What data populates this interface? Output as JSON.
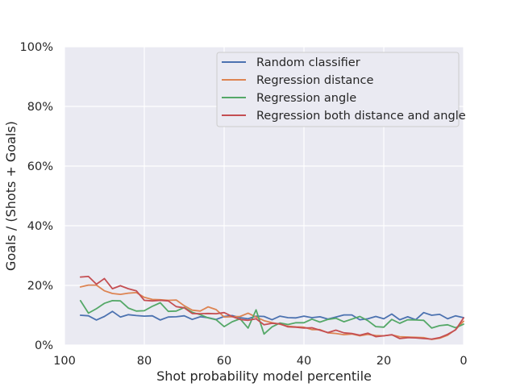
{
  "chart_data": {
    "type": "line",
    "title": "",
    "xlabel": "Shot probability model percentile",
    "ylabel": "Goals / (Shots + Goals)",
    "xlim": [
      100,
      0
    ],
    "ylim": [
      0,
      1
    ],
    "x_ticks": [
      100,
      80,
      60,
      40,
      20,
      0
    ],
    "x_tick_labels": [
      "100",
      "80",
      "60",
      "40",
      "20",
      "0"
    ],
    "y_ticks": [
      0,
      0.2,
      0.4,
      0.6,
      0.8,
      1.0
    ],
    "y_tick_labels": [
      "0%",
      "20%",
      "40%",
      "60%",
      "80%",
      "100%"
    ],
    "grid": true,
    "legend_position": "top-right",
    "x": [
      96,
      94,
      92,
      90,
      88,
      86,
      84,
      82,
      80,
      78,
      76,
      74,
      72,
      70,
      68,
      66,
      64,
      62,
      60,
      58,
      56,
      54,
      52,
      50,
      48,
      46,
      44,
      42,
      40,
      38,
      36,
      34,
      32,
      30,
      28,
      26,
      24,
      22,
      20,
      18,
      16,
      14,
      12,
      10,
      8,
      6,
      4,
      2,
      0
    ],
    "series": [
      {
        "name": "Random classifier",
        "color": "#4c72b0",
        "values": [
          0.1,
          0.098,
          0.084,
          0.096,
          0.113,
          0.094,
          0.102,
          0.099,
          0.097,
          0.098,
          0.084,
          0.094,
          0.095,
          0.098,
          0.086,
          0.095,
          0.092,
          0.086,
          0.096,
          0.099,
          0.092,
          0.088,
          0.097,
          0.096,
          0.085,
          0.097,
          0.092,
          0.091,
          0.097,
          0.092,
          0.095,
          0.087,
          0.094,
          0.101,
          0.101,
          0.085,
          0.088,
          0.096,
          0.088,
          0.104,
          0.085,
          0.095,
          0.085,
          0.109,
          0.1,
          0.103,
          0.088,
          0.098,
          0.092
        ]
      },
      {
        "name": "Regression distance",
        "color": "#dd8452",
        "values": [
          0.195,
          0.201,
          0.201,
          0.182,
          0.173,
          0.17,
          0.174,
          0.176,
          0.16,
          0.153,
          0.152,
          0.15,
          0.151,
          0.132,
          0.117,
          0.114,
          0.128,
          0.119,
          0.094,
          0.095,
          0.096,
          0.107,
          0.094,
          0.082,
          0.075,
          0.07,
          0.063,
          0.061,
          0.06,
          0.052,
          0.052,
          0.041,
          0.039,
          0.035,
          0.037,
          0.031,
          0.036,
          0.032,
          0.031,
          0.034,
          0.028,
          0.027,
          0.026,
          0.025,
          0.019,
          0.023,
          0.033,
          0.052,
          0.08
        ]
      },
      {
        "name": "Regression angle",
        "color": "#55a868",
        "values": [
          0.149,
          0.107,
          0.122,
          0.14,
          0.149,
          0.148,
          0.124,
          0.114,
          0.115,
          0.13,
          0.142,
          0.113,
          0.114,
          0.126,
          0.11,
          0.102,
          0.091,
          0.085,
          0.062,
          0.078,
          0.088,
          0.057,
          0.118,
          0.037,
          0.061,
          0.074,
          0.069,
          0.075,
          0.075,
          0.087,
          0.077,
          0.086,
          0.09,
          0.078,
          0.087,
          0.096,
          0.082,
          0.062,
          0.06,
          0.086,
          0.073,
          0.085,
          0.084,
          0.083,
          0.057,
          0.065,
          0.068,
          0.058,
          0.07
        ]
      },
      {
        "name": "Regression both distance and angle",
        "color": "#c44e52",
        "values": [
          0.228,
          0.23,
          0.204,
          0.223,
          0.189,
          0.199,
          0.189,
          0.182,
          0.15,
          0.148,
          0.15,
          0.148,
          0.129,
          0.125,
          0.106,
          0.105,
          0.106,
          0.105,
          0.109,
          0.096,
          0.086,
          0.083,
          0.088,
          0.068,
          0.073,
          0.071,
          0.061,
          0.06,
          0.057,
          0.058,
          0.05,
          0.042,
          0.05,
          0.041,
          0.039,
          0.033,
          0.04,
          0.028,
          0.031,
          0.035,
          0.022,
          0.025,
          0.024,
          0.022,
          0.02,
          0.025,
          0.036,
          0.051,
          0.091
        ]
      }
    ]
  },
  "colors": {
    "plot_background": "#eaeaf2",
    "grid": "#ffffff",
    "text": "#262626"
  }
}
